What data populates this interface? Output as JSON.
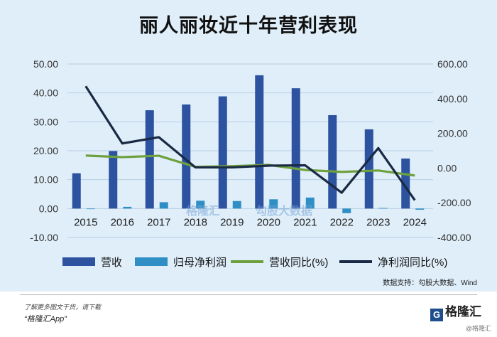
{
  "title": "丽人丽妆近十年营利表现",
  "chart_data": {
    "type": "bar",
    "categories": [
      "2015",
      "2016",
      "2017",
      "2018",
      "2019",
      "2020",
      "2021",
      "2022",
      "2023",
      "2024"
    ],
    "series": [
      {
        "name": "营收",
        "kind": "bar",
        "axis": "left",
        "color": "#2c52a0",
        "values": [
          12.2,
          19.9,
          34.0,
          36.0,
          38.8,
          46.1,
          41.6,
          32.3,
          27.4,
          17.3
        ]
      },
      {
        "name": "归母净利润",
        "kind": "bar",
        "axis": "left",
        "color": "#2f8fc4",
        "values": [
          -0.1,
          0.6,
          2.2,
          2.7,
          2.6,
          3.2,
          3.8,
          -1.6,
          0.2,
          -0.4
        ]
      },
      {
        "name": "营收同比(%)",
        "kind": "line",
        "axis": "right",
        "color": "#6ea13e",
        "values": [
          72,
          63,
          71,
          7,
          11,
          18,
          -11,
          -22,
          -14,
          -43
        ]
      },
      {
        "name": "净利润同比(%)",
        "kind": "line",
        "axis": "right",
        "color": "#1b2a44",
        "values": [
          472,
          142,
          178,
          4,
          4,
          14,
          16,
          -142,
          115,
          -185
        ]
      }
    ],
    "left_axis": {
      "ylim": [
        -10,
        50
      ],
      "ticks": [
        "-10.00",
        "0.00",
        "10.00",
        "20.00",
        "30.00",
        "40.00",
        "50.00"
      ]
    },
    "right_axis": {
      "ylim": [
        -400,
        600
      ],
      "ticks": [
        "-400.00",
        "-200.00",
        "0.00",
        "200.00",
        "400.00",
        "600.00"
      ]
    },
    "legend": [
      "营收",
      "归母净利润",
      "营收同比(%)",
      "净利润同比(%)"
    ],
    "legend_position": "bottom",
    "grid": true
  },
  "source": "数据支持：勾股大数据、Wind",
  "watermark": {
    "brand": "格隆汇",
    "partner": "勾股大数据"
  },
  "footer": {
    "note": "了解更多图文干货，请下载",
    "app": "“格隆汇App”",
    "brand": "格隆汇",
    "brand_icon": "G",
    "small_mark": "@格隆汇"
  }
}
